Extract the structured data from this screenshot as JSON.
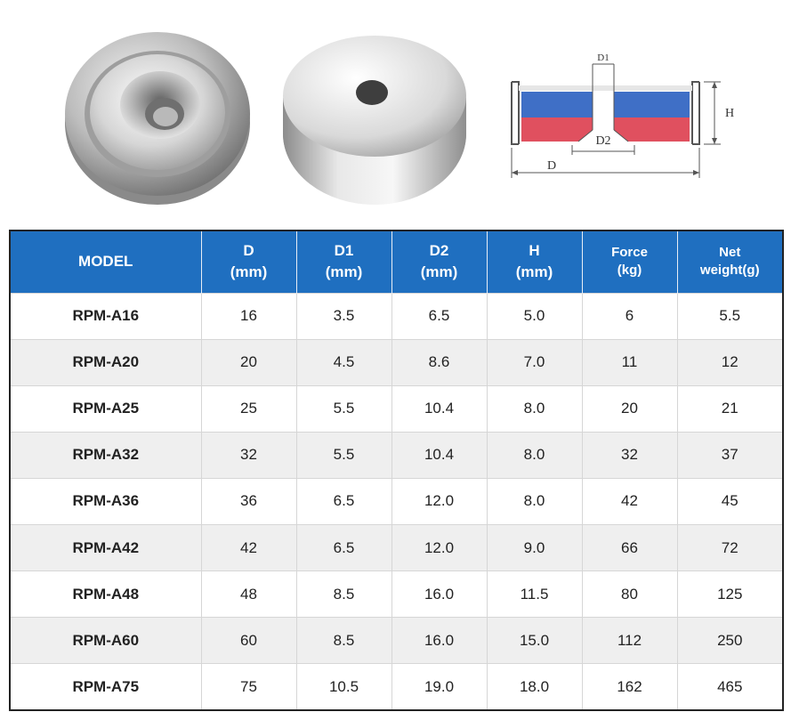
{
  "header": {
    "model": "MODEL",
    "d": [
      "D",
      "(mm)"
    ],
    "d1": [
      "D1",
      "(mm)"
    ],
    "d2": [
      "D2",
      "(mm)"
    ],
    "h": [
      "H",
      "(mm)"
    ],
    "force": [
      "Force",
      "(kg)"
    ],
    "weight": [
      "Net",
      "weight(g)"
    ]
  },
  "diagram": {
    "label_d1": "D1",
    "label_d2": "D2",
    "label_d": "D",
    "label_h": "H",
    "colors": {
      "blue_pole": "#3f6fc6",
      "red_pole": "#e0505f",
      "cup": "#555555"
    }
  },
  "rows": [
    {
      "model": "RPM-A16",
      "d": "16",
      "d1": "3.5",
      "d2": "6.5",
      "h": "5.0",
      "force": "6",
      "weight": "5.5"
    },
    {
      "model": "RPM-A20",
      "d": "20",
      "d1": "4.5",
      "d2": "8.6",
      "h": "7.0",
      "force": "11",
      "weight": "12"
    },
    {
      "model": "RPM-A25",
      "d": "25",
      "d1": "5.5",
      "d2": "10.4",
      "h": "8.0",
      "force": "20",
      "weight": "21"
    },
    {
      "model": "RPM-A32",
      "d": "32",
      "d1": "5.5",
      "d2": "10.4",
      "h": "8.0",
      "force": "32",
      "weight": "37"
    },
    {
      "model": "RPM-A36",
      "d": "36",
      "d1": "6.5",
      "d2": "12.0",
      "h": "8.0",
      "force": "42",
      "weight": "45"
    },
    {
      "model": "RPM-A42",
      "d": "42",
      "d1": "6.5",
      "d2": "12.0",
      "h": "9.0",
      "force": "66",
      "weight": "72"
    },
    {
      "model": "RPM-A48",
      "d": "48",
      "d1": "8.5",
      "d2": "16.0",
      "h": "11.5",
      "force": "80",
      "weight": "125"
    },
    {
      "model": "RPM-A60",
      "d": "60",
      "d1": "8.5",
      "d2": "16.0",
      "h": "15.0",
      "force": "112",
      "weight": "250"
    },
    {
      "model": "RPM-A75",
      "d": "75",
      "d1": "10.5",
      "d2": "19.0",
      "h": "18.0",
      "force": "162",
      "weight": "465"
    }
  ]
}
